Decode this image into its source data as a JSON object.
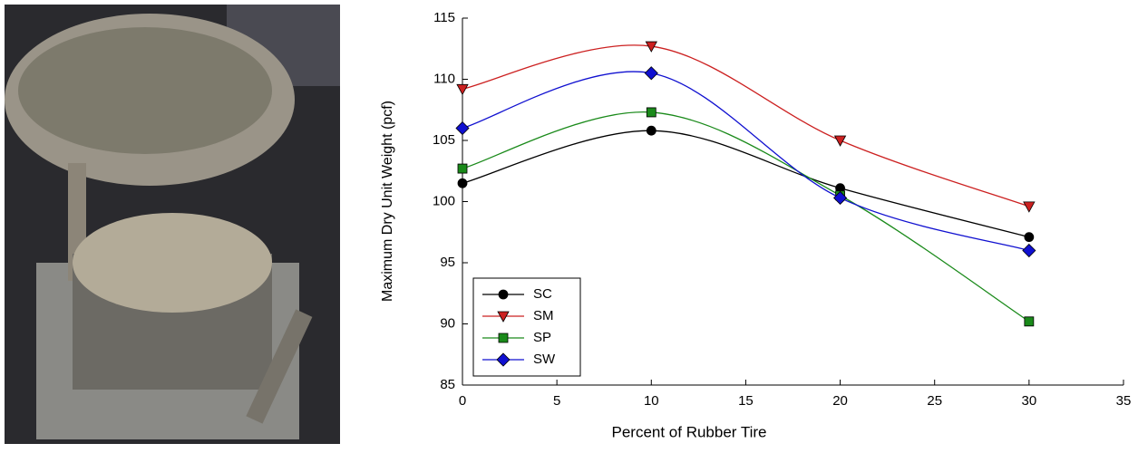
{
  "chart_data": {
    "type": "line",
    "x_label": "Percent of Rubber Tire",
    "y_label": "Maximum Dry Unit Weight (pcf)",
    "x": [
      0,
      10,
      20,
      30
    ],
    "series": [
      {
        "name": "SC",
        "color": "#000000",
        "marker": "circle",
        "values": [
          101.5,
          105.8,
          101.1,
          97.1
        ]
      },
      {
        "name": "SM",
        "color": "#cc2020",
        "marker": "triangle-down",
        "values": [
          109.2,
          112.7,
          105.0,
          99.6
        ]
      },
      {
        "name": "SP",
        "color": "#1a8a1a",
        "marker": "square",
        "values": [
          102.7,
          107.3,
          100.5,
          90.2
        ]
      },
      {
        "name": "SW",
        "color": "#1010d0",
        "marker": "diamond",
        "values": [
          106.0,
          110.5,
          100.3,
          96.0
        ]
      }
    ],
    "xlim": [
      0,
      35
    ],
    "xticks": [
      0,
      5,
      10,
      15,
      20,
      25,
      30,
      35
    ],
    "ylim": [
      85,
      115
    ],
    "yticks": [
      85,
      90,
      95,
      100,
      105,
      110,
      115
    ],
    "smooth": true,
    "legend": "lower left"
  }
}
